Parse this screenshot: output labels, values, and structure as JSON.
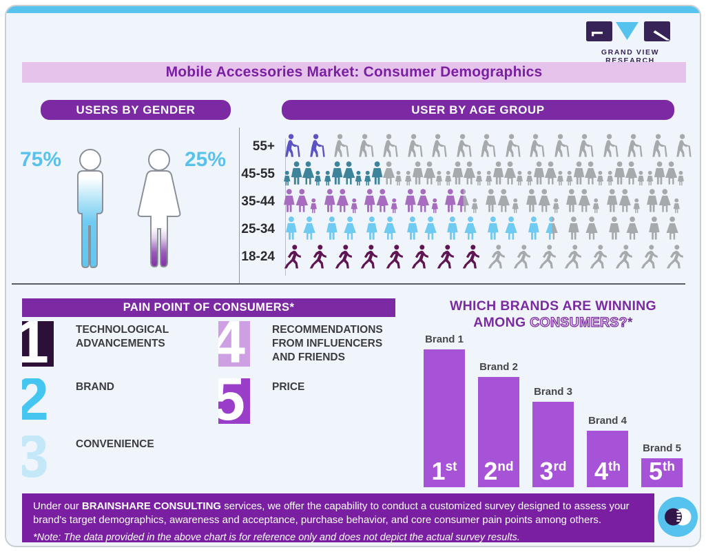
{
  "colors": {
    "cyan": "#56c3ee",
    "purple": "#7b2aa3",
    "purple-dark": "#7a1fa2",
    "bar-purple": "#a653d8",
    "title-band-bg": "#e5c3ea",
    "pct-blue": "#58c2ec",
    "gray-icon": "#a7aaac",
    "logo-navy": "#372355"
  },
  "logo": {
    "text": "GRAND VIEW RESEARCH"
  },
  "title": "Mobile Accessories Market: Consumer Demographics",
  "gender_section": {
    "header": "USERS BY GENDER",
    "male": {
      "label": "Male",
      "value": "75%",
      "fill": "#5fc6ef"
    },
    "female": {
      "label": "Female",
      "value": "25%",
      "fill": "#7a1fa2"
    }
  },
  "age_section": {
    "header": "USER BY AGE GROUP",
    "rows": [
      {
        "label": "55+",
        "icon": "elderly",
        "count": 17,
        "pct": 12,
        "color": "#5b52c6"
      },
      {
        "label": "45-55",
        "icon": "family4",
        "count": 10,
        "pct": 25,
        "color": "#3d849b"
      },
      {
        "label": "35-44",
        "icon": "family3",
        "count": 10,
        "pct": 45,
        "color": "#a76cc0"
      },
      {
        "label": "25-34",
        "icon": "couple",
        "count": 10,
        "pct": 67,
        "color": "#6fcbf1"
      },
      {
        "label": "18-24",
        "icon": "runner",
        "count": 16,
        "pct": 50,
        "color": "#5f1553"
      }
    ]
  },
  "pain_section": {
    "header": "PAIN POINT OF CONSUMERS*",
    "items": [
      {
        "num": "1",
        "label": "TECHNOLOGICAL ADVANCEMENTS",
        "tile_bg": "#2d1038",
        "num_color": "#ffffff"
      },
      {
        "num": "2",
        "label": "BRAND",
        "tile_bg": "transparent",
        "num_color": "#45c6f1"
      },
      {
        "num": "3",
        "label": "CONVENIENCE",
        "tile_bg": "transparent",
        "num_color": "#c5e8f8"
      },
      {
        "num": "4",
        "label": "RECOMMENDATIONS FROM INFLUENCERS AND FRIENDS",
        "tile_bg": "#cf9fe4",
        "num_color": "#ffffff"
      },
      {
        "num": "5",
        "label": "PRICE",
        "tile_bg": "#9a3ec9",
        "num_color": "#ffffff"
      }
    ]
  },
  "brands_section": {
    "title_line1": "WHICH BRANDS ARE WINNING",
    "title_line2_solid": "AMONG ",
    "title_line2_outline": "CONSUMERS?",
    "title_line2_star": "*"
  },
  "footer": {
    "prefix": "Under our ",
    "bold": "BRAINSHARE CONSULTING",
    "rest": " services, we offer the capability to conduct a customized survey designed to assess your brand's target demographics, awareness and acceptance, purchase behavior, and core consumer pain points among others.",
    "note": "*Note: The data provided in the above chart is for reference only and does not depict the actual survey results."
  },
  "chart_data": [
    {
      "type": "pictogram",
      "title": "USERS BY GENDER",
      "categories": [
        "Male",
        "Female"
      ],
      "values": [
        75,
        25
      ],
      "unit": "%",
      "grid": false,
      "legend_position": "none"
    },
    {
      "type": "pictogram",
      "title": "USER BY AGE GROUP",
      "categories": [
        "55+",
        "45-55",
        "35-44",
        "25-34",
        "18-24"
      ],
      "values": [
        12,
        25,
        45,
        67,
        50
      ],
      "unit": "% of row icons highlighted (estimated from fill)",
      "grid": false,
      "legend_position": "none"
    },
    {
      "type": "bar",
      "title": "WHICH BRANDS ARE WINNING AMONG CONSUMERS?*",
      "categories": [
        "Brand 1",
        "Brand 2",
        "Brand 3",
        "Brand 4",
        "Brand 5"
      ],
      "values": [
        100,
        80,
        62,
        41,
        21
      ],
      "bar_labels": [
        "1st",
        "2nd",
        "3rd",
        "4th",
        "5th"
      ],
      "xlabel": "",
      "ylabel": "",
      "ylim": [
        0,
        100
      ],
      "grid": false,
      "note": "no numeric axis shown; values are relative bar heights"
    }
  ]
}
